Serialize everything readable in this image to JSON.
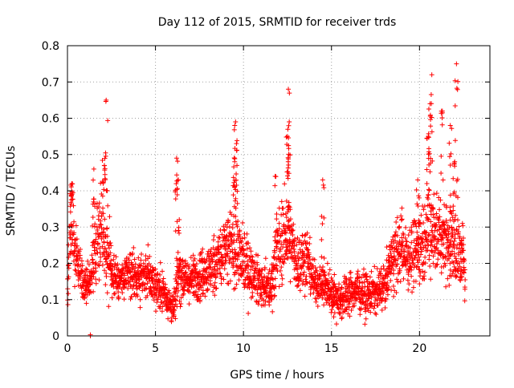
{
  "chart_data": {
    "type": "scatter",
    "title": "Day 112 of 2015, SRMTID for receiver trds",
    "xlabel": "GPS time / hours",
    "ylabel": "SRMTID / TECUs",
    "xlim": [
      0,
      24
    ],
    "ylim": [
      0,
      0.8
    ],
    "xticks": [
      0,
      5,
      10,
      15,
      20
    ],
    "yticks": [
      0,
      0.1,
      0.2,
      0.3,
      0.4,
      0.5,
      0.6,
      0.7,
      0.8
    ],
    "xtick_labels": [
      "0",
      "5",
      "10",
      "15",
      "20"
    ],
    "ytick_labels": [
      "0",
      "0.1",
      "0.2",
      "0.3",
      "0.4",
      "0.5",
      "0.6",
      "0.7",
      "0.8"
    ],
    "grid": true,
    "marker": "+",
    "series": [
      {
        "name": "SRMTID",
        "color": "#ff0000",
        "sample_step_hours": 0.05,
        "points_per_step": 6,
        "x_range": [
          0.0,
          22.6
        ],
        "envelope": [
          [
            0.0,
            0.16,
            0.07
          ],
          [
            0.2,
            0.34,
            0.12
          ],
          [
            0.5,
            0.2,
            0.07
          ],
          [
            0.9,
            0.13,
            0.04
          ],
          [
            1.3,
            0.16,
            0.05
          ],
          [
            1.6,
            0.27,
            0.1
          ],
          [
            1.9,
            0.33,
            0.12
          ],
          [
            2.2,
            0.24,
            0.12
          ],
          [
            2.5,
            0.17,
            0.06
          ],
          [
            3.0,
            0.15,
            0.05
          ],
          [
            3.5,
            0.17,
            0.06
          ],
          [
            4.0,
            0.16,
            0.05
          ],
          [
            4.5,
            0.17,
            0.06
          ],
          [
            5.0,
            0.14,
            0.05
          ],
          [
            5.5,
            0.12,
            0.05
          ],
          [
            6.0,
            0.07,
            0.04
          ],
          [
            6.3,
            0.18,
            0.07
          ],
          [
            6.8,
            0.15,
            0.05
          ],
          [
            7.5,
            0.17,
            0.06
          ],
          [
            8.0,
            0.18,
            0.06
          ],
          [
            8.5,
            0.21,
            0.08
          ],
          [
            9.0,
            0.23,
            0.09
          ],
          [
            9.5,
            0.25,
            0.1
          ],
          [
            10.0,
            0.2,
            0.08
          ],
          [
            10.5,
            0.17,
            0.06
          ],
          [
            11.0,
            0.14,
            0.05
          ],
          [
            11.5,
            0.13,
            0.05
          ],
          [
            12.0,
            0.25,
            0.1
          ],
          [
            12.5,
            0.28,
            0.1
          ],
          [
            13.0,
            0.2,
            0.07
          ],
          [
            13.5,
            0.22,
            0.08
          ],
          [
            14.0,
            0.15,
            0.05
          ],
          [
            14.5,
            0.14,
            0.05
          ],
          [
            15.0,
            0.12,
            0.05
          ],
          [
            15.5,
            0.1,
            0.05
          ],
          [
            16.0,
            0.12,
            0.05
          ],
          [
            16.5,
            0.13,
            0.05
          ],
          [
            17.0,
            0.11,
            0.05
          ],
          [
            17.5,
            0.12,
            0.05
          ],
          [
            18.0,
            0.14,
            0.05
          ],
          [
            18.5,
            0.22,
            0.08
          ],
          [
            19.0,
            0.24,
            0.08
          ],
          [
            19.5,
            0.22,
            0.08
          ],
          [
            20.0,
            0.25,
            0.09
          ],
          [
            20.5,
            0.3,
            0.12
          ],
          [
            21.0,
            0.28,
            0.1
          ],
          [
            21.5,
            0.27,
            0.1
          ],
          [
            22.0,
            0.24,
            0.09
          ],
          [
            22.6,
            0.2,
            0.08
          ]
        ],
        "peaks": [
          [
            0.25,
            0.42
          ],
          [
            2.2,
            0.65
          ],
          [
            2.1,
            0.47
          ],
          [
            6.2,
            0.49
          ],
          [
            6.3,
            0.43
          ],
          [
            9.55,
            0.59
          ],
          [
            9.6,
            0.53
          ],
          [
            9.5,
            0.48
          ],
          [
            12.55,
            0.68
          ],
          [
            12.6,
            0.59
          ],
          [
            12.5,
            0.55
          ],
          [
            11.8,
            0.44
          ],
          [
            14.5,
            0.43
          ],
          [
            19.9,
            0.43
          ],
          [
            20.6,
            0.64
          ],
          [
            20.7,
            0.72
          ],
          [
            20.5,
            0.55
          ],
          [
            21.3,
            0.62
          ],
          [
            21.75,
            0.58
          ],
          [
            22.1,
            0.75
          ],
          [
            22.0,
            0.48
          ],
          [
            1.5,
            0.46
          ]
        ],
        "extra_points": [
          [
            1.3,
            0.0
          ]
        ]
      }
    ]
  }
}
